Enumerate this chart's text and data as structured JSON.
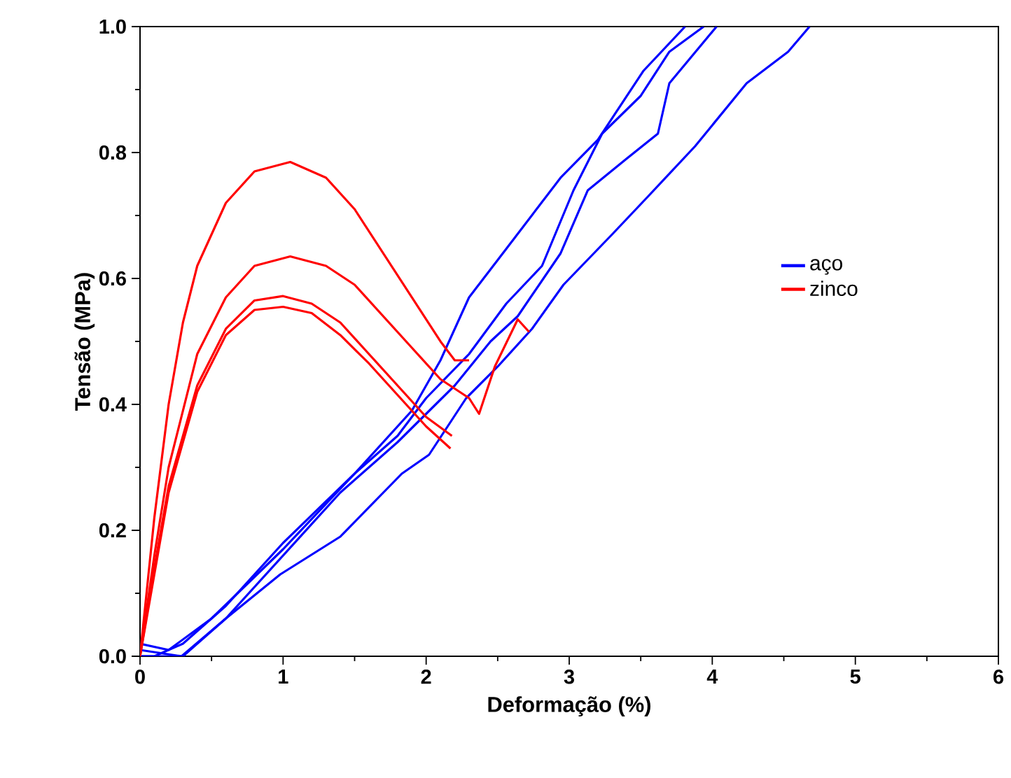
{
  "chart_data": {
    "type": "line",
    "xlabel": "Deformação (%)",
    "ylabel": "Tensão (MPa)",
    "xlim": [
      0,
      6
    ],
    "ylim": [
      0,
      1.0
    ],
    "xticks": [
      0,
      {
        "value": 0.5,
        "label": null
      },
      1,
      {
        "value": 1.5,
        "label": null
      },
      2,
      {
        "value": 2.5,
        "label": null
      },
      3,
      {
        "value": 3.5,
        "label": null
      },
      4,
      {
        "value": 4.5,
        "label": null
      },
      5,
      {
        "value": 5.5,
        "label": null
      },
      6
    ],
    "yticks": [
      {
        "value": 0,
        "label": "0.0"
      },
      {
        "value": 0.1,
        "label": null
      },
      {
        "value": 0.2,
        "label": "0.2"
      },
      {
        "value": 0.3,
        "label": null
      },
      {
        "value": 0.4,
        "label": "0.4"
      },
      {
        "value": 0.5,
        "label": null
      },
      {
        "value": 0.6,
        "label": "0.6"
      },
      {
        "value": 0.7,
        "label": null
      },
      {
        "value": 0.8,
        "label": "0.8"
      },
      {
        "value": 0.9,
        "label": null
      },
      {
        "value": 1.0,
        "label": "1.0"
      }
    ],
    "legend": "right",
    "grid": false,
    "marker": "none",
    "line_style": "solid",
    "series": [
      {
        "name": "aço",
        "color": "#0000ff",
        "x": [
          0,
          0.2,
          0.5,
          1.0,
          1.5,
          1.9,
          2.1,
          2.3,
          2.57,
          2.94,
          3.2,
          3.52,
          3.81
        ],
        "values": [
          0.02,
          0.01,
          0.06,
          0.17,
          0.29,
          0.39,
          0.47,
          0.57,
          0.65,
          0.76,
          0.82,
          0.93,
          1.0
        ]
      },
      {
        "color": "#0000ff",
        "x": [
          0,
          0.1,
          0.3,
          0.6,
          1.0,
          1.5,
          1.8,
          2.0,
          2.3,
          2.56,
          2.81,
          3.03,
          3.23,
          3.5,
          3.7,
          3.94
        ],
        "values": [
          0.0,
          0.0,
          0.02,
          0.08,
          0.18,
          0.29,
          0.35,
          0.41,
          0.48,
          0.56,
          0.62,
          0.74,
          0.83,
          0.89,
          0.96,
          1.0
        ]
      },
      {
        "color": "#0000ff",
        "x": [
          0,
          0.29,
          0.6,
          1.0,
          1.4,
          1.8,
          2.2,
          2.45,
          2.64,
          2.94,
          3.13,
          3.4,
          3.62,
          3.7,
          4.03
        ],
        "values": [
          0.01,
          0.0,
          0.06,
          0.16,
          0.26,
          0.34,
          0.43,
          0.5,
          0.54,
          0.64,
          0.74,
          0.79,
          0.83,
          0.91,
          1.0
        ]
      },
      {
        "color": "#0000ff",
        "x": [
          0,
          0.3,
          0.6,
          0.98,
          1.4,
          1.83,
          2.02,
          2.28,
          2.5,
          2.74,
          2.96,
          3.3,
          3.55,
          3.88,
          4.24,
          4.53,
          4.68
        ],
        "values": [
          0.0,
          0.0,
          0.06,
          0.13,
          0.19,
          0.29,
          0.32,
          0.41,
          0.46,
          0.52,
          0.59,
          0.67,
          0.73,
          0.81,
          0.91,
          0.96,
          1.0
        ]
      },
      {
        "name": "zinco",
        "color": "#ff0000",
        "x": [
          0,
          0.1,
          0.2,
          0.3,
          0.4,
          0.6,
          0.8,
          1.05,
          1.3,
          1.5,
          1.7,
          1.9,
          2.1,
          2.2,
          2.3
        ],
        "values": [
          0,
          0.22,
          0.4,
          0.53,
          0.62,
          0.72,
          0.77,
          0.785,
          0.76,
          0.71,
          0.64,
          0.57,
          0.5,
          0.47,
          0.47
        ]
      },
      {
        "color": "#ff0000",
        "x": [
          0,
          0.1,
          0.2,
          0.4,
          0.6,
          0.8,
          1.05,
          1.3,
          1.5,
          1.7,
          1.9,
          2.1,
          2.3,
          2.37,
          2.48,
          2.64,
          2.72
        ],
        "values": [
          0,
          0.16,
          0.3,
          0.48,
          0.57,
          0.62,
          0.635,
          0.62,
          0.59,
          0.54,
          0.49,
          0.44,
          0.41,
          0.385,
          0.46,
          0.535,
          0.515
        ]
      },
      {
        "color": "#ff0000",
        "x": [
          0,
          0.1,
          0.2,
          0.4,
          0.6,
          0.8,
          1.0,
          1.2,
          1.4,
          1.6,
          1.8,
          2.0,
          2.18
        ],
        "values": [
          0,
          0.14,
          0.27,
          0.43,
          0.52,
          0.565,
          0.572,
          0.56,
          0.53,
          0.48,
          0.43,
          0.38,
          0.35
        ]
      },
      {
        "color": "#ff0000",
        "x": [
          0,
          0.1,
          0.2,
          0.4,
          0.6,
          0.8,
          1.0,
          1.2,
          1.4,
          1.6,
          1.8,
          2.0,
          2.17
        ],
        "values": [
          0,
          0.13,
          0.26,
          0.42,
          0.51,
          0.55,
          0.555,
          0.545,
          0.51,
          0.465,
          0.415,
          0.365,
          0.33
        ]
      }
    ]
  }
}
